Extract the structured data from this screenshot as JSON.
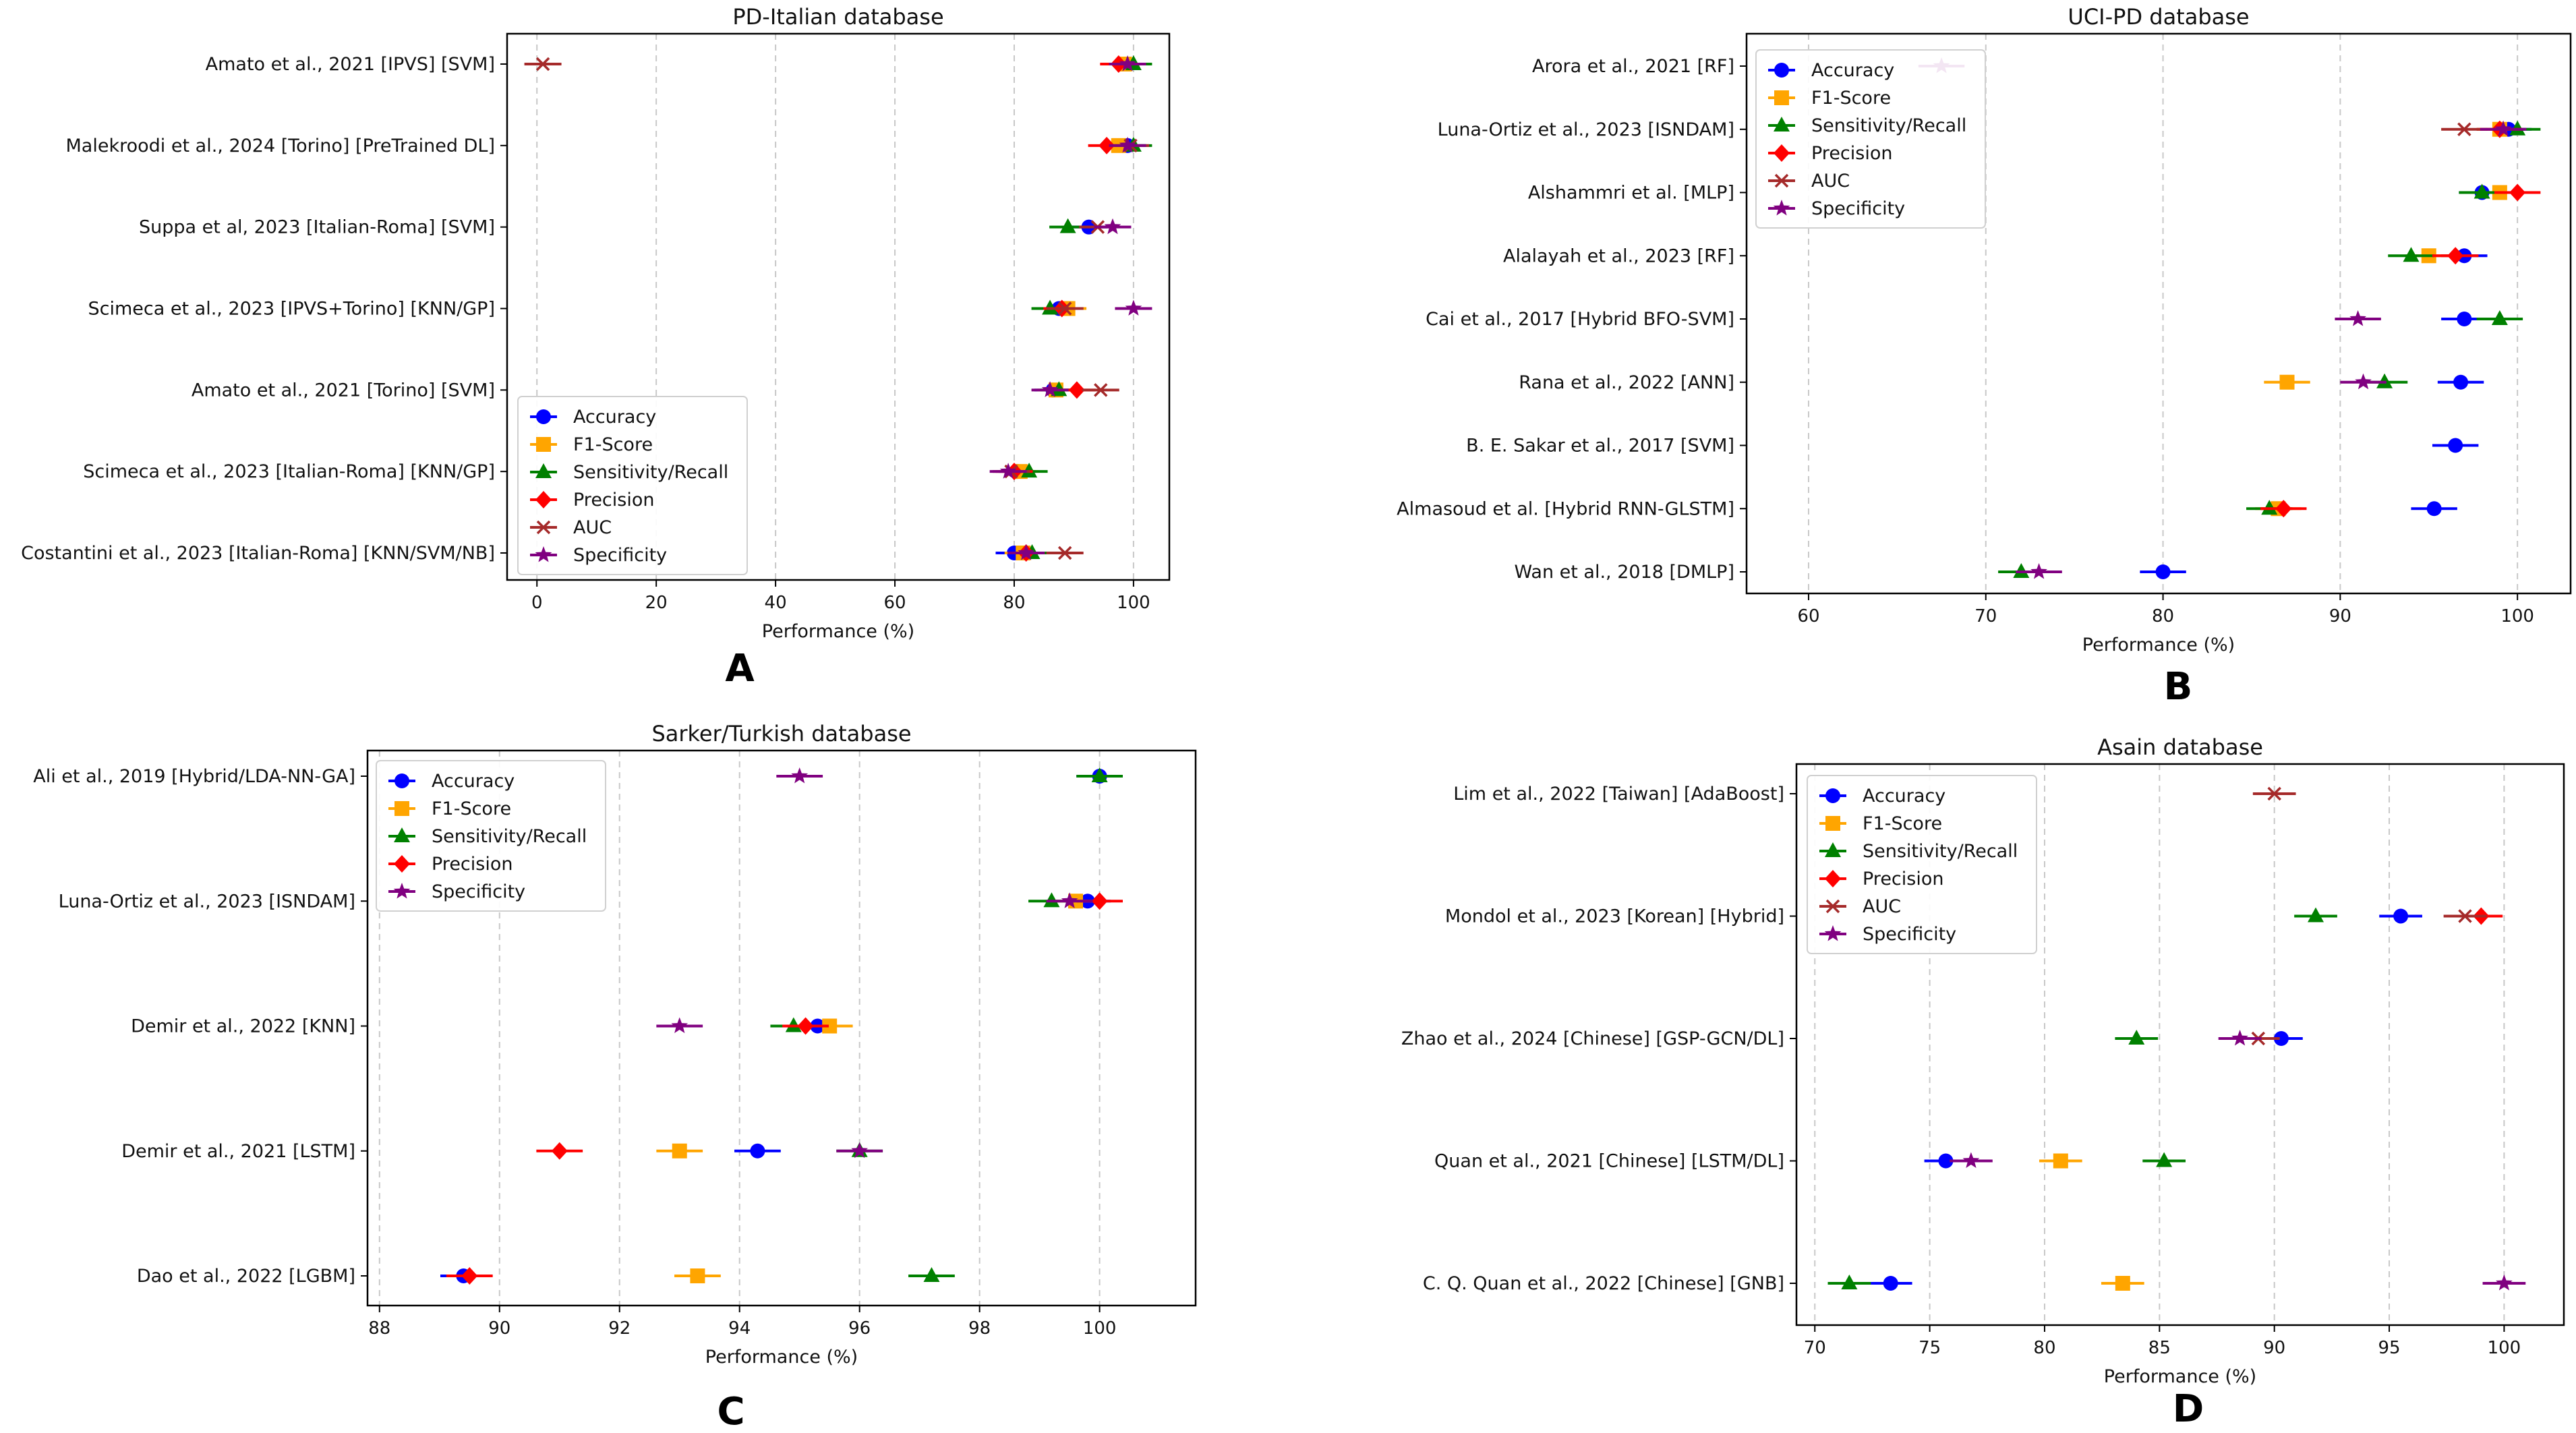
{
  "figure": {
    "panel_letters": [
      "A",
      "B",
      "C",
      "D"
    ],
    "colors": {
      "Accuracy": "#0000ff",
      "F1-Score": "#ffa500",
      "Sensitivity/Recall": "#008000",
      "Precision": "#ff0000",
      "AUC": "#a52a2a",
      "Specificity": "#800080"
    }
  },
  "chart_data": [
    {
      "type": "scatter",
      "title": "PD-Italian database",
      "xlabel": "Performance (%)",
      "ylabel": "",
      "xlim": [
        -5,
        106
      ],
      "xticks": [
        0,
        20,
        40,
        60,
        80,
        100
      ],
      "grid": "vertical-dashed",
      "legend_location": "lower-left",
      "legend": [
        "Accuracy",
        "F1-Score",
        "Sensitivity/Recall",
        "Precision",
        "AUC",
        "Specificity"
      ],
      "categories": [
        "Amato et al., 2021 [IPVS] [SVM]",
        "Malekroodi et al., 2024 [Torino] [PreTrained DL]",
        "Suppa et al, 2023 [Italian-Roma] [SVM]",
        "Scimeca et al., 2023 [IPVS+Torino] [KNN/GP]",
        "Amato et al., 2021 [Torino] [SVM]",
        "Scimeca et al., 2023 [Italian-Roma] [KNN/GP]",
        "Costantini et al., 2023 [Italian-Roma] [KNN/SVM/NB]"
      ],
      "series": [
        {
          "name": "Accuracy",
          "values": [
            98,
            99,
            92.5,
            87.5,
            86.5,
            80.5,
            80
          ]
        },
        {
          "name": "F1-Score",
          "values": [
            98.5,
            97.5,
            null,
            89,
            87,
            81,
            81.5
          ]
        },
        {
          "name": "Sensitivity/Recall",
          "values": [
            100,
            100,
            89,
            86,
            87.5,
            82.5,
            83
          ]
        },
        {
          "name": "Precision",
          "values": [
            97.5,
            95.5,
            null,
            88,
            90.5,
            80,
            82
          ]
        },
        {
          "name": "AUC",
          "values": [
            1,
            99.5,
            94,
            88.5,
            94.5,
            79.5,
            88.5
          ]
        },
        {
          "name": "Specificity",
          "values": [
            99,
            99,
            96.5,
            100,
            86,
            79,
            82
          ]
        }
      ]
    },
    {
      "type": "scatter",
      "title": "UCI-PD database",
      "xlabel": "Performance (%)",
      "ylabel": "",
      "xlim": [
        56.5,
        103
      ],
      "xticks": [
        60,
        70,
        80,
        90,
        100
      ],
      "grid": "vertical-dashed",
      "legend_location": "upper-left",
      "legend": [
        "Accuracy",
        "F1-Score",
        "Sensitivity/Recall",
        "Precision",
        "AUC",
        "Specificity"
      ],
      "categories": [
        "Arora et al., 2021 [RF]",
        "Luna-Ortiz et al., 2023 [ISNDAM]",
        "Alshammri et al. [MLP]",
        "Alalayah et al., 2023 [RF]",
        "Cai et al., 2017 [Hybrid BFO-SVM]",
        "Rana et al., 2022 [ANN]",
        "B. E. Sakar et al., 2017 [SVM]",
        "Almasoud et al. [Hybrid RNN-GLSTM]",
        "Wan et al., 2018 [DMLP]"
      ],
      "series": [
        {
          "name": "Accuracy",
          "values": [
            null,
            99.5,
            98,
            97,
            97,
            96.8,
            96.5,
            95.3,
            80
          ]
        },
        {
          "name": "F1-Score",
          "values": [
            null,
            99,
            99,
            95,
            null,
            87,
            null,
            86.5,
            null
          ]
        },
        {
          "name": "Sensitivity/Recall",
          "values": [
            null,
            100,
            98,
            94,
            99,
            92.5,
            null,
            86,
            72
          ]
        },
        {
          "name": "Precision",
          "values": [
            null,
            99,
            100,
            96.5,
            null,
            null,
            null,
            86.8,
            null
          ]
        },
        {
          "name": "AUC",
          "values": [
            null,
            97,
            null,
            null,
            null,
            null,
            null,
            null,
            null
          ]
        },
        {
          "name": "Specificity",
          "values": [
            67.5,
            99.2,
            null,
            null,
            91,
            91.3,
            null,
            null,
            73
          ]
        }
      ]
    },
    {
      "type": "scatter",
      "title": "Sarker/Turkish database",
      "xlabel": "Performance (%)",
      "ylabel": "",
      "xlim": [
        87.8,
        101.6
      ],
      "xticks": [
        88,
        90,
        92,
        94,
        96,
        98,
        100
      ],
      "grid": "vertical-dashed",
      "legend_location": "upper-left",
      "legend": [
        "Accuracy",
        "F1-Score",
        "Sensitivity/Recall",
        "Precision",
        "Specificity"
      ],
      "categories": [
        "Ali et al., 2019 [Hybrid/LDA-NN-GA]",
        "Luna-Ortiz et al., 2023 [ISNDAM]",
        "Demir et al., 2022 [KNN]",
        "Demir et al., 2021 [LSTM]",
        "Dao et al., 2022 [LGBM]"
      ],
      "series": [
        {
          "name": "Accuracy",
          "values": [
            100,
            99.8,
            95.3,
            94.3,
            89.4
          ]
        },
        {
          "name": "F1-Score",
          "values": [
            null,
            99.6,
            95.5,
            93,
            93.3
          ]
        },
        {
          "name": "Sensitivity/Recall",
          "values": [
            100,
            99.2,
            94.9,
            96,
            97.2
          ]
        },
        {
          "name": "Precision",
          "values": [
            null,
            100,
            95.1,
            91,
            89.5
          ]
        },
        {
          "name": "Specificity",
          "values": [
            95,
            99.5,
            93,
            96,
            null
          ]
        }
      ]
    },
    {
      "type": "scatter",
      "title": "Asain database",
      "xlabel": "Performance (%)",
      "ylabel": "",
      "xlim": [
        69.2,
        102.6
      ],
      "xticks": [
        70,
        75,
        80,
        85,
        90,
        95,
        100
      ],
      "grid": "vertical-dashed",
      "legend_location": "upper-left",
      "legend": [
        "Accuracy",
        "F1-Score",
        "Sensitivity/Recall",
        "Precision",
        "AUC",
        "Specificity"
      ],
      "categories": [
        "Lim et al., 2022 [Taiwan] [AdaBoost]",
        "Mondol et al., 2023 [Korean] [Hybrid]",
        "Zhao et al., 2024 [Chinese] [GSP-GCN/DL]",
        "Quan et al., 2021 [Chinese] [LSTM/DL]",
        "C. Q. Quan et al., 2022 [Chinese] [GNB]"
      ],
      "series": [
        {
          "name": "Accuracy",
          "values": [
            null,
            95.5,
            90.3,
            75.7,
            73.3
          ]
        },
        {
          "name": "F1-Score",
          "values": [
            null,
            null,
            null,
            80.7,
            83.4
          ]
        },
        {
          "name": "Sensitivity/Recall",
          "values": [
            null,
            91.8,
            84,
            85.2,
            71.5
          ]
        },
        {
          "name": "Precision",
          "values": [
            null,
            99,
            null,
            null,
            null
          ]
        },
        {
          "name": "AUC",
          "values": [
            90,
            98.3,
            89.3,
            null,
            null
          ]
        },
        {
          "name": "Specificity",
          "values": [
            null,
            null,
            88.5,
            76.8,
            100
          ]
        }
      ]
    }
  ]
}
